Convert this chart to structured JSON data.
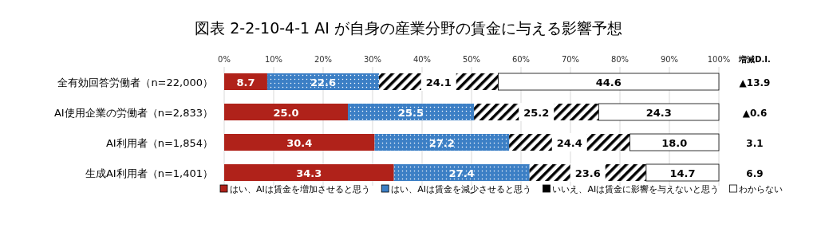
{
  "chart_data": {
    "type": "bar",
    "orientation": "horizontal",
    "stacked": true,
    "title": "図表 2-2-10-4-1  AI が自身の産業分野の賃金に与える影響予想",
    "categories": [
      "全有効回答労働者（n=22,000）",
      "AI使用企業の労働者（n=2,833）",
      "AI利用者（n=1,854）",
      "生成AI利用者（n=1,401）"
    ],
    "series": [
      {
        "name": "はい、AIは賃金を増加させると思う",
        "color": "#b0221a",
        "values": [
          8.7,
          25.0,
          30.4,
          34.3
        ],
        "value_labels": [
          "8.7",
          "25.0",
          "30.4",
          "34.3"
        ]
      },
      {
        "name": "はい、AIは賃金を減少させると思う",
        "color": "#3c7fc5",
        "values": [
          22.6,
          25.5,
          27.2,
          27.4
        ],
        "value_labels": [
          "22.6",
          "25.5",
          "27.2",
          "27.4"
        ]
      },
      {
        "name": "いいえ、AIは賃金に影響を与えないと思う",
        "color": "#000000",
        "values": [
          24.1,
          25.2,
          24.4,
          23.6
        ],
        "value_labels": [
          "24.1",
          "25.2",
          "24.4",
          "23.6"
        ]
      },
      {
        "name": "わからない",
        "color": "#ffffff",
        "values": [
          44.6,
          24.3,
          18.0,
          14.7
        ],
        "value_labels": [
          "44.6",
          "24.3",
          "18.0",
          "14.7"
        ]
      }
    ],
    "xlim": [
      0,
      100
    ],
    "xticks": [
      {
        "value": 0,
        "label": "0%"
      },
      {
        "value": 10,
        "label": "10%"
      },
      {
        "value": 20,
        "label": "20%"
      },
      {
        "value": 30,
        "label": "30%"
      },
      {
        "value": 40,
        "label": "40%"
      },
      {
        "value": 50,
        "label": "50%"
      },
      {
        "value": 60,
        "label": "60%"
      },
      {
        "value": 70,
        "label": "70%"
      },
      {
        "value": 80,
        "label": "80%"
      },
      {
        "value": 90,
        "label": "90%"
      },
      {
        "value": 100,
        "label": "100%"
      }
    ],
    "grid": "x",
    "legend": "bottom",
    "annotations": [
      "増減D.I.",
      "▲13.9",
      "▲0.6",
      "3.1",
      "6.9"
    ]
  }
}
